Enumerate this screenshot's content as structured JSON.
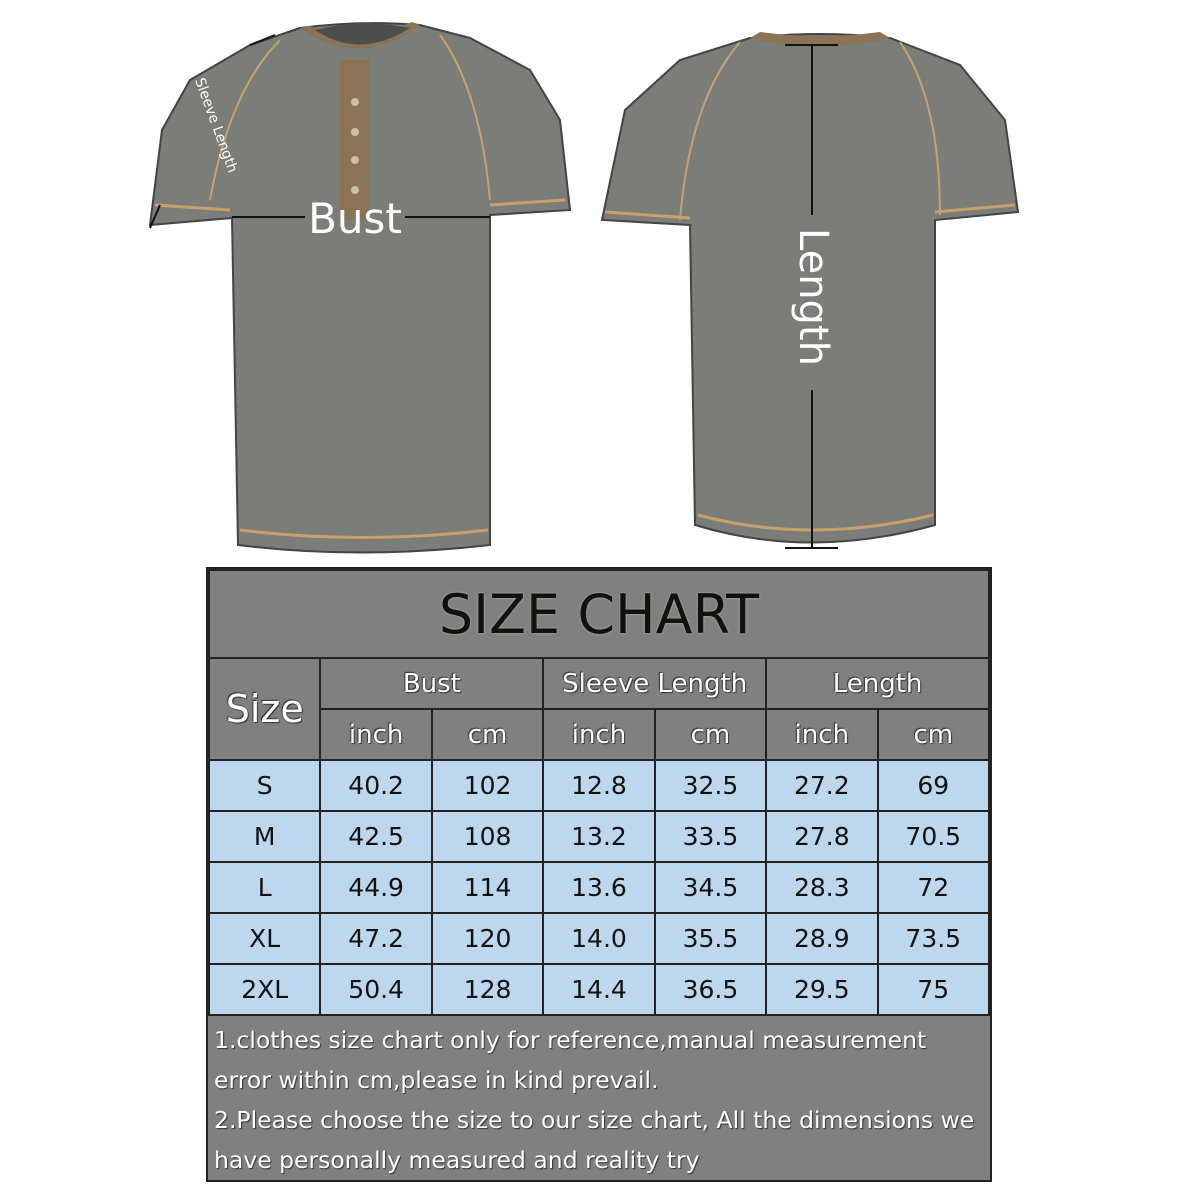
{
  "labels": {
    "bust": "Bust",
    "sleeve": "Sleeve Length",
    "length": "Length"
  },
  "colors": {
    "shirt": "#7b7d78",
    "trim": "#8b7355",
    "header": "#808080",
    "row": "#bdd7ee"
  },
  "chart": {
    "title": "SIZE CHART",
    "size_header": "Size",
    "groups": [
      "Bust",
      "Sleeve Length",
      "Length"
    ],
    "units": [
      "inch",
      "cm",
      "inch",
      "cm",
      "inch",
      "cm"
    ],
    "rows": [
      [
        "S",
        "40.2",
        "102",
        "12.8",
        "32.5",
        "27.2",
        "69"
      ],
      [
        "M",
        "42.5",
        "108",
        "13.2",
        "33.5",
        "27.8",
        "70.5"
      ],
      [
        "L",
        "44.9",
        "114",
        "13.6",
        "34.5",
        "28.3",
        "72"
      ],
      [
        "XL",
        "47.2",
        "120",
        "14.0",
        "35.5",
        "28.9",
        "73.5"
      ],
      [
        "2XL",
        "50.4",
        "128",
        "14.4",
        "36.5",
        "29.5",
        "75"
      ]
    ],
    "notes": [
      "1.clothes size chart only for reference,manual measurement",
      "error within cm,please in kind prevail.",
      "2.Please choose the size to our size chart, All the dimensions we",
      "have personally measured and reality try"
    ]
  }
}
